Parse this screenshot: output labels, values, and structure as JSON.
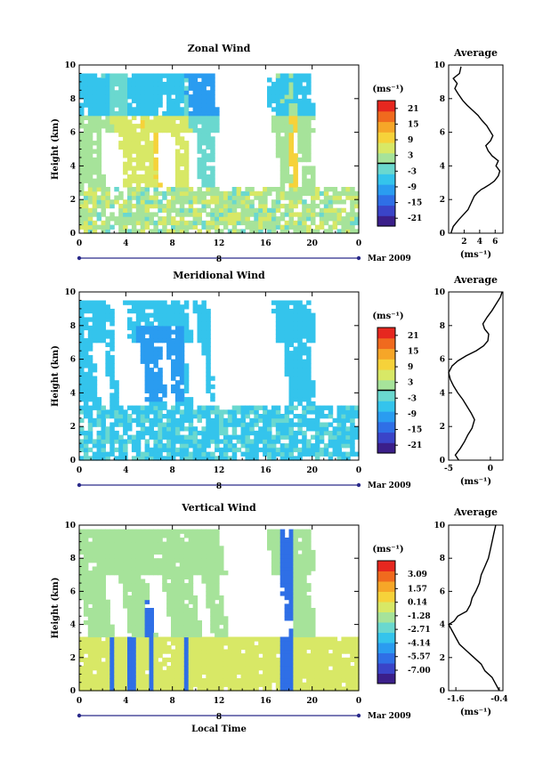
{
  "figure": {
    "date_label": "Mar 2009",
    "x_axis_title": "Local Time",
    "day_label": "8",
    "unit_label": "(ms⁻¹)"
  },
  "colorscale": [
    "#3b1f8a",
    "#3a44c8",
    "#2f6fe6",
    "#2a9cf0",
    "#34c4ec",
    "#6ad8cf",
    "#a6e39a",
    "#d8e866",
    "#f6d23a",
    "#f6a628",
    "#f06a1e",
    "#e6271f"
  ],
  "chart_data": [
    {
      "type": "heatmap",
      "title": "Zonal Wind",
      "xlabel": "",
      "ylabel": "Height (km)",
      "xlim": [
        0,
        24
      ],
      "ylim": [
        0,
        10
      ],
      "xticks": [
        "0",
        "4",
        "8",
        "12",
        "16",
        "20",
        "0"
      ],
      "yticks": [
        "0",
        "2",
        "4",
        "6",
        "8",
        "10"
      ],
      "colorbar": {
        "unit": "(ms⁻¹)",
        "ticks": [
          "21",
          "15",
          "9",
          "3",
          "-3",
          "-9",
          "-15",
          "-21"
        ],
        "range": [
          -24,
          24
        ]
      },
      "average_profile": {
        "title": "Average",
        "unit": "(ms⁻¹)",
        "xticks": [
          "2",
          "4",
          "6"
        ],
        "xlim": [
          0,
          7
        ],
        "yticks": [
          "0",
          "2",
          "4",
          "6",
          "8",
          "10"
        ],
        "points": [
          [
            0.3,
            0
          ],
          [
            0.6,
            0.4
          ],
          [
            1.3,
            0.8
          ],
          [
            1.9,
            1.1
          ],
          [
            2.5,
            1.4
          ],
          [
            2.9,
            1.8
          ],
          [
            3.3,
            2.2
          ],
          [
            3.7,
            2.4
          ],
          [
            4.2,
            2.6
          ],
          [
            4.6,
            2.7
          ],
          [
            5.3,
            2.9
          ],
          [
            5.9,
            3.1
          ],
          [
            6.4,
            3.4
          ],
          [
            6.6,
            3.7
          ],
          [
            6.1,
            4.0
          ],
          [
            6.4,
            4.3
          ],
          [
            5.6,
            4.6
          ],
          [
            5.1,
            4.9
          ],
          [
            4.8,
            5.2
          ],
          [
            5.4,
            5.5
          ],
          [
            5.7,
            5.8
          ],
          [
            5.3,
            6.1
          ],
          [
            4.9,
            6.4
          ],
          [
            4.3,
            6.7
          ],
          [
            3.8,
            7.0
          ],
          [
            3.1,
            7.3
          ],
          [
            2.4,
            7.6
          ],
          [
            1.8,
            7.9
          ],
          [
            1.2,
            8.3
          ],
          [
            0.8,
            8.6
          ],
          [
            1.1,
            8.9
          ],
          [
            0.6,
            9.2
          ],
          [
            1.4,
            9.5
          ],
          [
            1.6,
            9.9
          ]
        ]
      }
    },
    {
      "type": "heatmap",
      "title": "Meridional Wind",
      "xlabel": "",
      "ylabel": "Height (km)",
      "xlim": [
        0,
        24
      ],
      "ylim": [
        0,
        10
      ],
      "xticks": [
        "0",
        "4",
        "8",
        "12",
        "16",
        "20",
        "0"
      ],
      "yticks": [
        "0",
        "2",
        "4",
        "6",
        "8",
        "10"
      ],
      "colorbar": {
        "unit": "(ms⁻¹)",
        "ticks": [
          "21",
          "15",
          "9",
          "3",
          "-3",
          "-9",
          "-15",
          "-21"
        ],
        "range": [
          -24,
          24
        ]
      },
      "average_profile": {
        "title": "Average",
        "unit": "(ms⁻¹)",
        "xticks": [
          "-5",
          "0"
        ],
        "xlim": [
          -5,
          1.5
        ],
        "yticks": [
          "0",
          "2",
          "4",
          "6",
          "8",
          "10"
        ],
        "points": [
          [
            -3.8,
            0
          ],
          [
            -4.2,
            0.3
          ],
          [
            -3.6,
            0.7
          ],
          [
            -3.1,
            1.1
          ],
          [
            -2.7,
            1.5
          ],
          [
            -2.2,
            1.9
          ],
          [
            -1.9,
            2.4
          ],
          [
            -2.3,
            2.8
          ],
          [
            -2.8,
            3.2
          ],
          [
            -3.3,
            3.6
          ],
          [
            -3.9,
            4.0
          ],
          [
            -4.4,
            4.4
          ],
          [
            -4.8,
            4.8
          ],
          [
            -5.0,
            5.2
          ],
          [
            -4.6,
            5.6
          ],
          [
            -3.9,
            5.9
          ],
          [
            -2.9,
            6.2
          ],
          [
            -1.7,
            6.5
          ],
          [
            -0.8,
            6.8
          ],
          [
            -0.3,
            7.1
          ],
          [
            -0.2,
            7.5
          ],
          [
            -0.7,
            7.8
          ],
          [
            -0.9,
            8.1
          ],
          [
            -0.4,
            8.5
          ],
          [
            0.2,
            8.9
          ],
          [
            0.7,
            9.3
          ],
          [
            1.2,
            9.7
          ],
          [
            1.4,
            10
          ]
        ]
      }
    },
    {
      "type": "heatmap",
      "title": "Vertical Wind",
      "xlabel": "Local Time",
      "ylabel": "Height (km)",
      "xlim": [
        0,
        24
      ],
      "ylim": [
        0,
        10
      ],
      "xticks": [
        "0",
        "4",
        "8",
        "12",
        "16",
        "20",
        "0"
      ],
      "yticks": [
        "0",
        "2",
        "4",
        "6",
        "8",
        "10"
      ],
      "colorbar": {
        "unit": "(ms⁻¹)",
        "ticks": [
          "3.09",
          "1.57",
          "0.14",
          "-1.28",
          "-2.71",
          "-4.14",
          "-5.57",
          "-7.00"
        ],
        "range": [
          -8.4,
          4.5
        ]
      },
      "average_profile": {
        "title": "Average",
        "unit": "(ms⁻¹)",
        "xticks": [
          "-1.6",
          "-0.4"
        ],
        "xlim": [
          -1.8,
          -0.3
        ],
        "yticks": [
          "0",
          "2",
          "4",
          "6",
          "8",
          "10"
        ],
        "points": [
          [
            -0.4,
            0
          ],
          [
            -0.5,
            0.4
          ],
          [
            -0.6,
            0.8
          ],
          [
            -0.8,
            1.2
          ],
          [
            -0.9,
            1.6
          ],
          [
            -1.1,
            2.0
          ],
          [
            -1.3,
            2.4
          ],
          [
            -1.5,
            2.8
          ],
          [
            -1.6,
            3.2
          ],
          [
            -1.7,
            3.6
          ],
          [
            -1.8,
            4.0
          ],
          [
            -1.65,
            4.2
          ],
          [
            -1.55,
            4.5
          ],
          [
            -1.3,
            4.8
          ],
          [
            -1.2,
            5.2
          ],
          [
            -1.15,
            5.6
          ],
          [
            -1.05,
            6.0
          ],
          [
            -0.95,
            6.5
          ],
          [
            -0.9,
            7.0
          ],
          [
            -0.8,
            7.5
          ],
          [
            -0.7,
            8.0
          ],
          [
            -0.65,
            8.5
          ],
          [
            -0.6,
            9.0
          ],
          [
            -0.55,
            9.5
          ],
          [
            -0.5,
            10
          ]
        ]
      }
    }
  ]
}
